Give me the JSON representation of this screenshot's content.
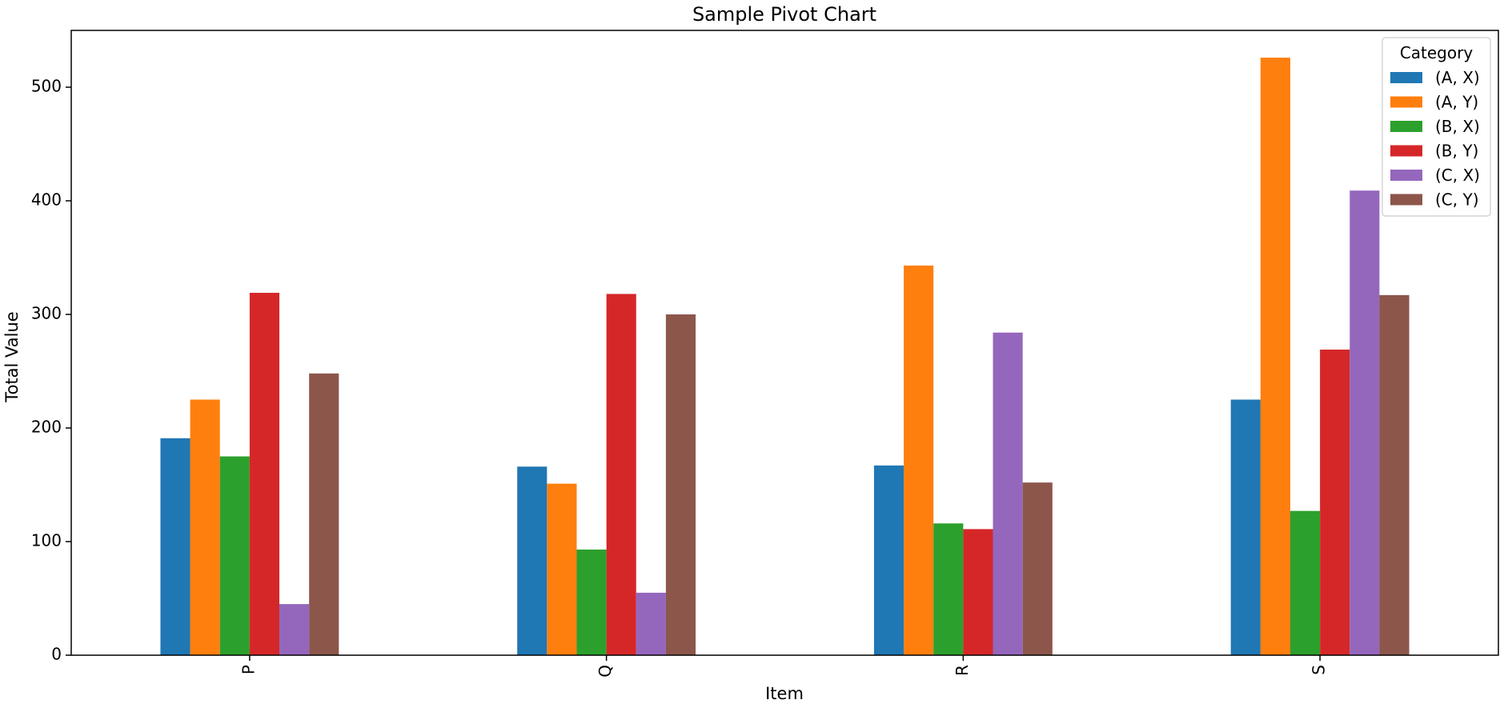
{
  "chart_data": {
    "type": "bar",
    "title": "Sample Pivot Chart",
    "xlabel": "Item",
    "ylabel": "Total Value",
    "categories": [
      "P",
      "Q",
      "R",
      "S"
    ],
    "ylim": [
      0,
      550
    ],
    "yticks": [
      0,
      100,
      200,
      300,
      400,
      500
    ],
    "grid": false,
    "legend": {
      "title": "Category",
      "placement": "top-right"
    },
    "series": [
      {
        "name": "(A, X)",
        "color": "#1f77b4",
        "values": [
          191,
          166,
          167,
          225
        ]
      },
      {
        "name": "(A, Y)",
        "color": "#ff7f0e",
        "values": [
          225,
          151,
          343,
          526
        ]
      },
      {
        "name": "(B, X)",
        "color": "#2ca02c",
        "values": [
          175,
          93,
          116,
          127
        ]
      },
      {
        "name": "(B, Y)",
        "color": "#d62728",
        "values": [
          319,
          318,
          111,
          269
        ]
      },
      {
        "name": "(C, X)",
        "color": "#9467bd",
        "values": [
          45,
          55,
          284,
          409
        ]
      },
      {
        "name": "(C, Y)",
        "color": "#8c564b",
        "values": [
          248,
          300,
          152,
          317
        ]
      }
    ]
  }
}
